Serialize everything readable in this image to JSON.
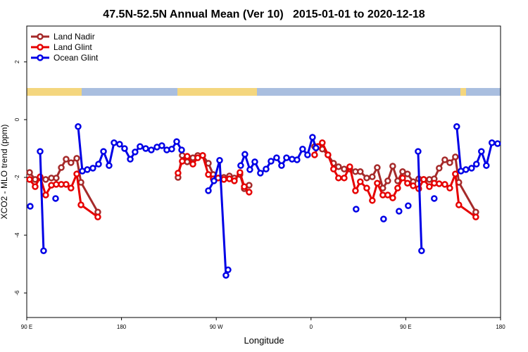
{
  "chart_data": {
    "type": "line",
    "title": "47.5N-52.5N Annual Mean (Ver 10)   2015-01-01 to 2020-12-18",
    "x_label": "Longitude",
    "y_label": "XCO2 - MLO trend (ppm)",
    "xlim": [
      90,
      540
    ],
    "xticks": [
      {
        "value": 90,
        "label": "90 E"
      },
      {
        "value": 180,
        "label": "180"
      },
      {
        "value": 270,
        "label": "90 W"
      },
      {
        "value": 360,
        "label": "0"
      },
      {
        "value": 450,
        "label": "90 E"
      },
      {
        "value": 540,
        "label": "180"
      }
    ],
    "ylim": [
      -6.85,
      3.24
    ],
    "yticks": [
      -6,
      -4,
      -2,
      0,
      2
    ],
    "legend": "upper left",
    "series": [
      {
        "name": "Land Nadir",
        "color": "#a52a2a",
        "x": [
          92.7,
          98,
          102.7,
          108,
          113.4,
          118,
          122.8,
          127.4,
          132,
          137.5,
          141.5,
          157.5,
          null,
          233.7,
          237.7,
          242.4,
          247.8,
          252.4,
          257.1,
          262.5,
          267.1,
          271.8,
          277.2,
          282.5,
          287.2,
          292.5,
          296.6,
          301.2,
          null,
          363.4,
          366.7,
          370.7,
          376.1,
          381.4,
          386.1,
          391.5,
          396.8,
          402.2,
          406.8,
          412.9,
          418.2,
          422.9,
          428.2,
          432.9,
          437.6,
          442.3,
          447,
          451.6,
          457,
          462.3,
          467,
          472.4,
          477,
          481.7,
          487.1,
          491.8,
          497.1,
          500.4,
          516.5
        ],
        "values": [
          -1.83,
          -2.07,
          -2.02,
          -2.07,
          -2.02,
          -2.02,
          -1.66,
          -1.37,
          -1.49,
          -1.34,
          -2.17,
          -3.2,
          null,
          -2.0,
          -1.24,
          -1.46,
          -1.32,
          -1.24,
          -1.24,
          -1.51,
          -1.9,
          -2.02,
          -2.0,
          -1.95,
          -2.02,
          -1.9,
          -2.39,
          -2.27,
          null,
          -0.93,
          -0.93,
          -1.02,
          -1.22,
          -1.51,
          -1.63,
          -1.71,
          -1.71,
          -1.8,
          -1.8,
          -2.02,
          -1.98,
          -1.66,
          -2.37,
          -2.12,
          -1.61,
          -2.12,
          -1.8,
          -1.88,
          -2.15,
          -2.05,
          -2.07,
          -2.07,
          -2.05,
          -1.68,
          -1.39,
          -1.49,
          -1.29,
          -2.17,
          -3.2
        ]
      },
      {
        "name": "Land Glint",
        "color": "#e60000",
        "x": [
          92.7,
          98,
          102.7,
          108,
          113.4,
          118,
          122.8,
          127.4,
          132,
          137.5,
          141.5,
          157.5,
          null,
          233.7,
          237.7,
          242.4,
          247.8,
          252.4,
          257.1,
          262.5,
          267.1,
          271.8,
          277.2,
          282.5,
          287.2,
          292.5,
          296.6,
          301.2,
          null,
          363.4,
          366.7,
          370.7,
          376.1,
          381.4,
          386.1,
          391.5,
          396.8,
          402.2,
          406.8,
          412.9,
          418.2,
          422.9,
          428.2,
          432.9,
          437.6,
          442.3,
          447,
          451.6,
          457,
          462.3,
          467,
          472.4,
          477,
          481.7,
          487.1,
          491.8,
          497.1,
          500.4,
          516.5
        ],
        "values": [
          -2.07,
          -2.32,
          -1.98,
          -2.61,
          -2.27,
          -2.24,
          -2.24,
          -2.24,
          -2.37,
          -1.88,
          -2.95,
          -3.37,
          null,
          -1.85,
          -1.44,
          -1.27,
          -1.54,
          -1.32,
          -1.24,
          -1.9,
          -2.05,
          -2.02,
          -2.07,
          -2.05,
          -2.12,
          -1.83,
          -2.32,
          -2.51,
          null,
          -1.22,
          -0.93,
          -0.8,
          -1.22,
          -1.71,
          -2.02,
          -2.02,
          -1.63,
          -2.46,
          -2.15,
          -2.37,
          -2.8,
          -2.2,
          -2.61,
          -2.61,
          -2.71,
          -2.37,
          -2.02,
          -2.2,
          -2.29,
          -2.39,
          -2.07,
          -2.32,
          -2.2,
          -2.22,
          -2.24,
          -2.37,
          -1.88,
          -2.95,
          -3.37
        ]
      },
      {
        "name": "Ocean Glint",
        "color": "#0000e6",
        "x": [
          93.3,
          null,
          102.7,
          106,
          null,
          117.4,
          null,
          138.8,
          142.8,
          147.5,
          152.8,
          158.2,
          162.9,
          168.2,
          172.9,
          178.2,
          182.9,
          188.3,
          192.9,
          197.6,
          203,
          208.3,
          213.7,
          218.3,
          223,
          227.7,
          232.4,
          237.1,
          null,
          262.5,
          267.8,
          273.2,
          279.2,
          281.2,
          null,
          293.2,
          297.2,
          301.9,
          306.6,
          311.9,
          317.3,
          322,
          327.3,
          332,
          336.7,
          342,
          346.7,
          352,
          356.7,
          361.4,
          364.7,
          null,
          402.8,
          null,
          428.9,
          null,
          443.6,
          null,
          452.3,
          null,
          461.7,
          465,
          null,
          477,
          null,
          498.4,
          502.4,
          507.1,
          512.5,
          517.1,
          521.8,
          526.5,
          531.8,
          537.2
        ],
        "values": [
          -3.0,
          null,
          -1.1,
          -4.54,
          null,
          -2.73,
          null,
          -0.24,
          -1.78,
          -1.73,
          -1.68,
          -1.54,
          -1.1,
          -1.59,
          -0.8,
          -0.85,
          -1.0,
          -1.37,
          -1.12,
          -0.93,
          -1.0,
          -1.05,
          -0.95,
          -0.9,
          -1.05,
          -1.02,
          -0.76,
          -1.05,
          null,
          -2.46,
          -2.12,
          -1.41,
          -5.39,
          -5.2,
          null,
          -1.59,
          -1.2,
          -1.73,
          -1.46,
          -1.85,
          -1.71,
          -1.44,
          -1.32,
          -1.59,
          -1.32,
          -1.37,
          -1.39,
          -1.02,
          -1.22,
          -0.61,
          -0.98,
          null,
          -3.1,
          null,
          -3.44,
          null,
          -3.17,
          null,
          -2.98,
          null,
          -1.1,
          -4.54,
          null,
          -2.73,
          null,
          -0.24,
          -1.78,
          -1.73,
          -1.68,
          -1.54,
          -1.1,
          -1.59,
          -0.8,
          -0.83
        ]
      }
    ]
  }
}
